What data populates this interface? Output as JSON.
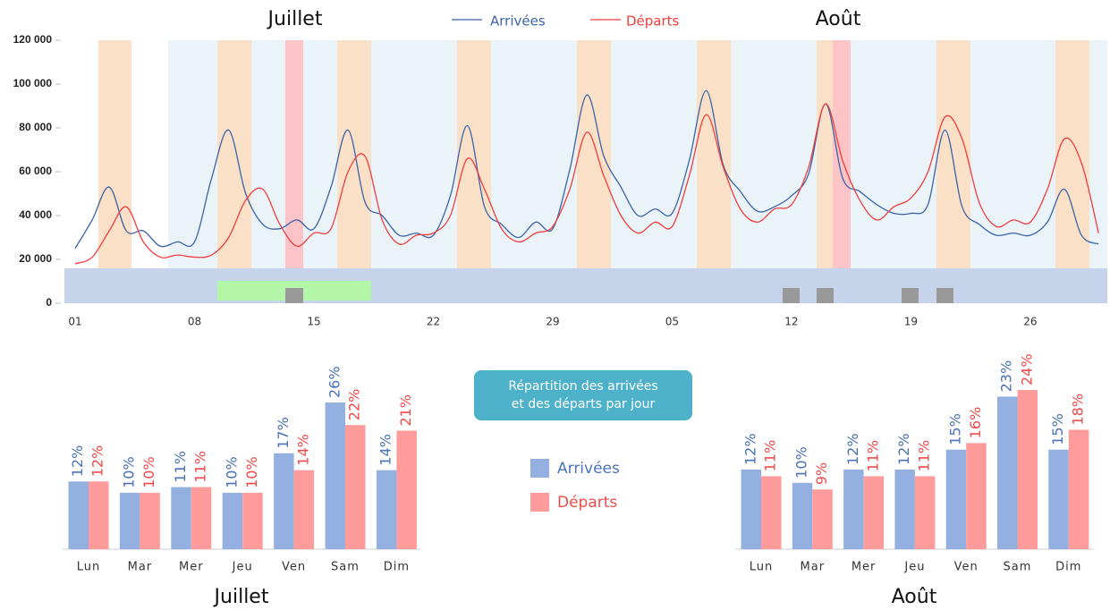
{
  "chart_data": [
    {
      "type": "line",
      "annotations": [
        "Juillet",
        "Août"
      ],
      "categories": [
        "01",
        null,
        null,
        null,
        null,
        null,
        null,
        "08",
        null,
        null,
        null,
        null,
        null,
        null,
        "15",
        null,
        null,
        null,
        null,
        null,
        null,
        "22",
        null,
        null,
        null,
        null,
        null,
        null,
        "29",
        null,
        null,
        null,
        null,
        null,
        null,
        "05",
        null,
        null,
        null,
        null,
        null,
        null,
        "12",
        null,
        null,
        null,
        null,
        null,
        null,
        "19",
        null,
        null,
        null,
        null,
        null,
        null,
        "26",
        null,
        null,
        null,
        null
      ],
      "series": [
        {
          "name": "Arrivées",
          "color": "#3b63a9",
          "values": [
            25000,
            38000,
            53000,
            33000,
            33000,
            26000,
            28000,
            28000,
            57000,
            79000,
            50000,
            36000,
            34000,
            38000,
            34000,
            53000,
            79000,
            46000,
            40000,
            31000,
            32000,
            31000,
            49000,
            81000,
            44000,
            36000,
            30000,
            37000,
            34000,
            61000,
            95000,
            67000,
            53000,
            40000,
            43000,
            41000,
            65000,
            97000,
            63000,
            51000,
            42000,
            44000,
            49000,
            59000,
            91000,
            57000,
            51000,
            45000,
            41000,
            41000,
            45000,
            79000,
            44000,
            36000,
            31000,
            32000,
            31000,
            37000,
            52000,
            31000,
            27000
          ]
        },
        {
          "name": "Départs",
          "color": "#f23d3d",
          "values": [
            18000,
            21000,
            33000,
            44000,
            28000,
            21000,
            22000,
            21000,
            22000,
            30000,
            47000,
            52000,
            36000,
            26000,
            32000,
            34000,
            60000,
            67000,
            38000,
            27000,
            31000,
            32000,
            40000,
            66000,
            52000,
            34000,
            28000,
            32000,
            35000,
            52000,
            78000,
            58000,
            40000,
            32000,
            37000,
            35000,
            58000,
            86000,
            62000,
            43000,
            37000,
            43000,
            45000,
            62000,
            91000,
            65000,
            47000,
            38000,
            44000,
            48000,
            60000,
            85000,
            75000,
            46000,
            35000,
            38000,
            37000,
            52000,
            75000,
            64000,
            32000
          ]
        }
      ],
      "ylim": [
        0,
        120000
      ],
      "yticks": [
        0,
        {
          "value": 20000,
          "label": "20 000"
        },
        {
          "value": 40000,
          "label": "40 000"
        },
        {
          "value": 60000,
          "label": "60 000"
        },
        {
          "value": 80000,
          "label": "80 000"
        },
        {
          "value": 100000,
          "label": "100 000"
        },
        {
          "value": 120000,
          "label": "120 000"
        }
      ]
    },
    {
      "type": "bar",
      "title": "Juillet",
      "categories": [
        "Lun",
        "Mar",
        "Mer",
        "Jeu",
        "Ven",
        "Sam",
        "Dim"
      ],
      "series": [
        {
          "name": "Arrivées",
          "color": "#94b0e0",
          "label_color": "#4a73b9",
          "values": [
            12,
            10,
            11,
            10,
            17,
            26,
            14
          ],
          "value_labels": [
            "12%",
            "10%",
            "11%",
            "10%",
            "17%",
            "26%",
            "14%"
          ]
        },
        {
          "name": "Départs",
          "color": "#ff9b9b",
          "label_color": "#f04a4a",
          "values": [
            12,
            10,
            11,
            10,
            14,
            22,
            21
          ],
          "value_labels": [
            "12%",
            "10%",
            "11%",
            "10%",
            "14%",
            "22%",
            "21%"
          ]
        }
      ]
    },
    {
      "type": "bar",
      "title": "Août",
      "categories": [
        "Lun",
        "Mar",
        "Mer",
        "Jeu",
        "Ven",
        "Sam",
        "Dim"
      ],
      "series": [
        {
          "name": "Arrivées",
          "color": "#94b0e0",
          "label_color": "#4a73b9",
          "values": [
            12,
            10,
            12,
            12,
            15,
            23,
            15
          ],
          "value_labels": [
            "12%",
            "10%",
            "12%",
            "12%",
            "15%",
            "23%",
            "15%"
          ]
        },
        {
          "name": "Départs",
          "color": "#ff9b9b",
          "label_color": "#f04a4a",
          "values": [
            11,
            9,
            11,
            11,
            16,
            24,
            18
          ],
          "value_labels": [
            "11%",
            "9%",
            "11%",
            "11%",
            "16%",
            "24%",
            "18%"
          ]
        }
      ]
    }
  ],
  "caption": [
    "Répartition des arrivées",
    "et des départs par jour"
  ]
}
